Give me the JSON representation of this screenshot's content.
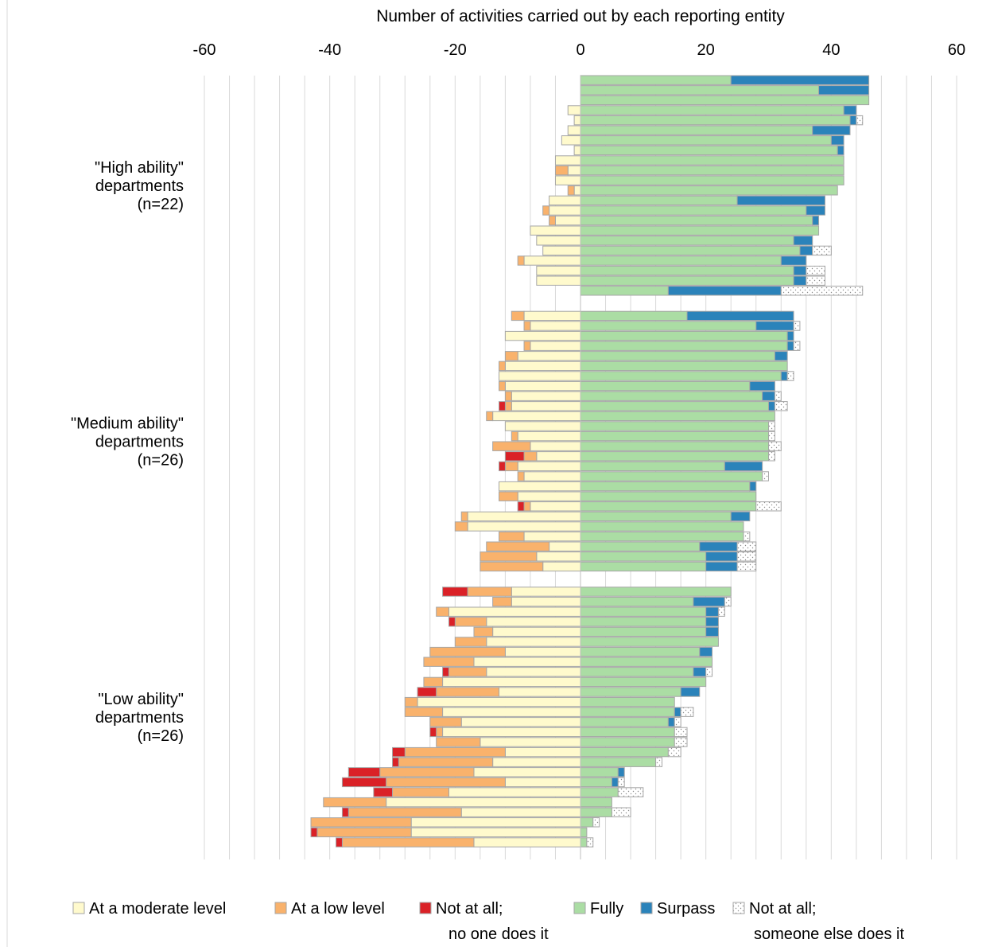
{
  "chart_data": {
    "type": "bar",
    "orientation": "horizontal",
    "stacked": true,
    "diverging": true,
    "title": "",
    "xlabel": "Number of activities carried out by each reporting entity",
    "ylabel": "",
    "xlim": [
      -60,
      60
    ],
    "xticks": [
      -60,
      -40,
      -20,
      0,
      20,
      40,
      60
    ],
    "x_axis_position": "top",
    "grid": true,
    "legend_position": "bottom",
    "colors": {
      "moderate": "#FFFACD",
      "low": "#F9B26C",
      "notall_none": "#DA2127",
      "fully": "#ABDDA4",
      "surpass": "#2B83BA",
      "notall_else": "#FFFFFF",
      "bar_stroke": "#A6A6A6",
      "grid": "#D9D9D9"
    },
    "legend": [
      {
        "key": "moderate",
        "label": "At a moderate level",
        "label2": ""
      },
      {
        "key": "low",
        "label": "At a low level",
        "label2": ""
      },
      {
        "key": "notall_none",
        "label": "Not at all;",
        "label2": "no one does it"
      },
      {
        "key": "fully",
        "label": "Fully",
        "label2": ""
      },
      {
        "key": "surpass",
        "label": "Surpass",
        "label2": ""
      },
      {
        "key": "notall_else",
        "label": "Not at all;",
        "label2": "someone else does it"
      }
    ],
    "groups": [
      {
        "label": [
          "\"High ability\"",
          "departments",
          "(n=22)"
        ],
        "rows": [
          {
            "moderate": 0,
            "low": 0,
            "notall_none": 0,
            "fully": 24,
            "surpass": 22,
            "notall_else": 0
          },
          {
            "moderate": 0,
            "low": 0,
            "notall_none": 0,
            "fully": 38,
            "surpass": 8,
            "notall_else": 0
          },
          {
            "moderate": 0,
            "low": 0,
            "notall_none": 0,
            "fully": 46,
            "surpass": 0,
            "notall_else": 0
          },
          {
            "moderate": 2,
            "low": 0,
            "notall_none": 0,
            "fully": 42,
            "surpass": 2,
            "notall_else": 0
          },
          {
            "moderate": 1,
            "low": 0,
            "notall_none": 0,
            "fully": 43,
            "surpass": 1,
            "notall_else": 1
          },
          {
            "moderate": 2,
            "low": 0,
            "notall_none": 0,
            "fully": 37,
            "surpass": 6,
            "notall_else": 0
          },
          {
            "moderate": 3,
            "low": 0,
            "notall_none": 0,
            "fully": 40,
            "surpass": 2,
            "notall_else": 0
          },
          {
            "moderate": 1,
            "low": 0,
            "notall_none": 0,
            "fully": 41,
            "surpass": 1,
            "notall_else": 0
          },
          {
            "moderate": 4,
            "low": 0,
            "notall_none": 0,
            "fully": 42,
            "surpass": 0,
            "notall_else": 0
          },
          {
            "moderate": 2,
            "low": 2,
            "notall_none": 0,
            "fully": 42,
            "surpass": 0,
            "notall_else": 0
          },
          {
            "moderate": 4,
            "low": 0,
            "notall_none": 0,
            "fully": 42,
            "surpass": 0,
            "notall_else": 0
          },
          {
            "moderate": 1,
            "low": 1,
            "notall_none": 0,
            "fully": 41,
            "surpass": 0,
            "notall_else": 0
          },
          {
            "moderate": 5,
            "low": 0,
            "notall_none": 0,
            "fully": 25,
            "surpass": 14,
            "notall_else": 0
          },
          {
            "moderate": 5,
            "low": 1,
            "notall_none": 0,
            "fully": 36,
            "surpass": 3,
            "notall_else": 0
          },
          {
            "moderate": 4,
            "low": 1,
            "notall_none": 0,
            "fully": 37,
            "surpass": 1,
            "notall_else": 0
          },
          {
            "moderate": 8,
            "low": 0,
            "notall_none": 0,
            "fully": 38,
            "surpass": 0,
            "notall_else": 0
          },
          {
            "moderate": 7,
            "low": 0,
            "notall_none": 0,
            "fully": 34,
            "surpass": 3,
            "notall_else": 0
          },
          {
            "moderate": 6,
            "low": 0,
            "notall_none": 0,
            "fully": 35,
            "surpass": 2,
            "notall_else": 3
          },
          {
            "moderate": 9,
            "low": 1,
            "notall_none": 0,
            "fully": 32,
            "surpass": 4,
            "notall_else": 0
          },
          {
            "moderate": 7,
            "low": 0,
            "notall_none": 0,
            "fully": 34,
            "surpass": 2,
            "notall_else": 3
          },
          {
            "moderate": 7,
            "low": 0,
            "notall_none": 0,
            "fully": 34,
            "surpass": 2,
            "notall_else": 3
          },
          {
            "moderate": 0,
            "low": 0,
            "notall_none": 0,
            "fully": 14,
            "surpass": 18,
            "notall_else": 13
          }
        ]
      },
      {
        "label": [
          "\"Medium ability\"",
          "departments",
          "(n=26)"
        ],
        "rows": [
          {
            "moderate": 9,
            "low": 2,
            "notall_none": 0,
            "fully": 17,
            "surpass": 17,
            "notall_else": 0
          },
          {
            "moderate": 8,
            "low": 1,
            "notall_none": 0,
            "fully": 28,
            "surpass": 6,
            "notall_else": 1
          },
          {
            "moderate": 12,
            "low": 0,
            "notall_none": 0,
            "fully": 33,
            "surpass": 1,
            "notall_else": 0
          },
          {
            "moderate": 8,
            "low": 1,
            "notall_none": 0,
            "fully": 33,
            "surpass": 1,
            "notall_else": 1
          },
          {
            "moderate": 10,
            "low": 2,
            "notall_none": 0,
            "fully": 31,
            "surpass": 2,
            "notall_else": 0
          },
          {
            "moderate": 12,
            "low": 1,
            "notall_none": 0,
            "fully": 33,
            "surpass": 0,
            "notall_else": 0
          },
          {
            "moderate": 13,
            "low": 0,
            "notall_none": 0,
            "fully": 32,
            "surpass": 1,
            "notall_else": 1
          },
          {
            "moderate": 12,
            "low": 1,
            "notall_none": 0,
            "fully": 27,
            "surpass": 4,
            "notall_else": 0
          },
          {
            "moderate": 11,
            "low": 1,
            "notall_none": 0,
            "fully": 29,
            "surpass": 2,
            "notall_else": 1
          },
          {
            "moderate": 11,
            "low": 1,
            "notall_none": 1,
            "fully": 30,
            "surpass": 1,
            "notall_else": 2
          },
          {
            "moderate": 14,
            "low": 1,
            "notall_none": 0,
            "fully": 31,
            "surpass": 0,
            "notall_else": 0
          },
          {
            "moderate": 12,
            "low": 0,
            "notall_none": 0,
            "fully": 30,
            "surpass": 0,
            "notall_else": 1
          },
          {
            "moderate": 10,
            "low": 1,
            "notall_none": 0,
            "fully": 30,
            "surpass": 0,
            "notall_else": 1
          },
          {
            "moderate": 8,
            "low": 6,
            "notall_none": 0,
            "fully": 30,
            "surpass": 0,
            "notall_else": 2
          },
          {
            "moderate": 7,
            "low": 2,
            "notall_none": 3,
            "fully": 30,
            "surpass": 0,
            "notall_else": 1
          },
          {
            "moderate": 10,
            "low": 2,
            "notall_none": 1,
            "fully": 23,
            "surpass": 6,
            "notall_else": 0
          },
          {
            "moderate": 9,
            "low": 1,
            "notall_none": 0,
            "fully": 29,
            "surpass": 0,
            "notall_else": 1
          },
          {
            "moderate": 13,
            "low": 0,
            "notall_none": 0,
            "fully": 27,
            "surpass": 1,
            "notall_else": 0
          },
          {
            "moderate": 10,
            "low": 3,
            "notall_none": 0,
            "fully": 28,
            "surpass": 0,
            "notall_else": 0
          },
          {
            "moderate": 8,
            "low": 1,
            "notall_none": 1,
            "fully": 28,
            "surpass": 0,
            "notall_else": 4
          },
          {
            "moderate": 18,
            "low": 1,
            "notall_none": 0,
            "fully": 24,
            "surpass": 3,
            "notall_else": 0
          },
          {
            "moderate": 18,
            "low": 2,
            "notall_none": 0,
            "fully": 26,
            "surpass": 0,
            "notall_else": 0
          },
          {
            "moderate": 9,
            "low": 4,
            "notall_none": 0,
            "fully": 26,
            "surpass": 0,
            "notall_else": 1
          },
          {
            "moderate": 5,
            "low": 10,
            "notall_none": 0,
            "fully": 19,
            "surpass": 6,
            "notall_else": 3
          },
          {
            "moderate": 7,
            "low": 9,
            "notall_none": 0,
            "fully": 20,
            "surpass": 5,
            "notall_else": 3
          },
          {
            "moderate": 6,
            "low": 10,
            "notall_none": 0,
            "fully": 20,
            "surpass": 5,
            "notall_else": 3
          }
        ]
      },
      {
        "label": [
          "\"Low ability\"",
          "departments",
          "(n=26)"
        ],
        "rows": [
          {
            "moderate": 11,
            "low": 7,
            "notall_none": 4,
            "fully": 24,
            "surpass": 0,
            "notall_else": 0
          },
          {
            "moderate": 11,
            "low": 3,
            "notall_none": 0,
            "fully": 18,
            "surpass": 5,
            "notall_else": 1
          },
          {
            "moderate": 21,
            "low": 2,
            "notall_none": 0,
            "fully": 20,
            "surpass": 2,
            "notall_else": 1
          },
          {
            "moderate": 15,
            "low": 5,
            "notall_none": 1,
            "fully": 20,
            "surpass": 2,
            "notall_else": 0
          },
          {
            "moderate": 14,
            "low": 3,
            "notall_none": 0,
            "fully": 20,
            "surpass": 2,
            "notall_else": 0
          },
          {
            "moderate": 15,
            "low": 5,
            "notall_none": 0,
            "fully": 22,
            "surpass": 0,
            "notall_else": 0
          },
          {
            "moderate": 12,
            "low": 12,
            "notall_none": 0,
            "fully": 19,
            "surpass": 2,
            "notall_else": 0
          },
          {
            "moderate": 17,
            "low": 8,
            "notall_none": 0,
            "fully": 21,
            "surpass": 0,
            "notall_else": 0
          },
          {
            "moderate": 15,
            "low": 6,
            "notall_none": 1,
            "fully": 18,
            "surpass": 2,
            "notall_else": 1
          },
          {
            "moderate": 22,
            "low": 3,
            "notall_none": 0,
            "fully": 20,
            "surpass": 0,
            "notall_else": 0
          },
          {
            "moderate": 13,
            "low": 10,
            "notall_none": 3,
            "fully": 16,
            "surpass": 3,
            "notall_else": 0
          },
          {
            "moderate": 26,
            "low": 2,
            "notall_none": 0,
            "fully": 15,
            "surpass": 0,
            "notall_else": 0
          },
          {
            "moderate": 22,
            "low": 6,
            "notall_none": 0,
            "fully": 15,
            "surpass": 1,
            "notall_else": 2
          },
          {
            "moderate": 19,
            "low": 5,
            "notall_none": 0,
            "fully": 14,
            "surpass": 1,
            "notall_else": 1
          },
          {
            "moderate": 22,
            "low": 1,
            "notall_none": 1,
            "fully": 15,
            "surpass": 0,
            "notall_else": 2
          },
          {
            "moderate": 16,
            "low": 7,
            "notall_none": 0,
            "fully": 15,
            "surpass": 0,
            "notall_else": 2
          },
          {
            "moderate": 12,
            "low": 16,
            "notall_none": 2,
            "fully": 14,
            "surpass": 0,
            "notall_else": 2
          },
          {
            "moderate": 14,
            "low": 15,
            "notall_none": 1,
            "fully": 12,
            "surpass": 0,
            "notall_else": 1
          },
          {
            "moderate": 17,
            "low": 15,
            "notall_none": 5,
            "fully": 6,
            "surpass": 1,
            "notall_else": 0
          },
          {
            "moderate": 12,
            "low": 19,
            "notall_none": 7,
            "fully": 5,
            "surpass": 1,
            "notall_else": 1
          },
          {
            "moderate": 21,
            "low": 9,
            "notall_none": 3,
            "fully": 6,
            "surpass": 0,
            "notall_else": 4
          },
          {
            "moderate": 31,
            "low": 10,
            "notall_none": 0,
            "fully": 5,
            "surpass": 0,
            "notall_else": 0
          },
          {
            "moderate": 19,
            "low": 18,
            "notall_none": 1,
            "fully": 5,
            "surpass": 0,
            "notall_else": 3
          },
          {
            "moderate": 27,
            "low": 16,
            "notall_none": 0,
            "fully": 2,
            "surpass": 0,
            "notall_else": 1
          },
          {
            "moderate": 27,
            "low": 15,
            "notall_none": 1,
            "fully": 1,
            "surpass": 0,
            "notall_else": 0
          },
          {
            "moderate": 17,
            "low": 21,
            "notall_none": 1,
            "fully": 1,
            "surpass": 0,
            "notall_else": 1
          }
        ]
      }
    ]
  }
}
